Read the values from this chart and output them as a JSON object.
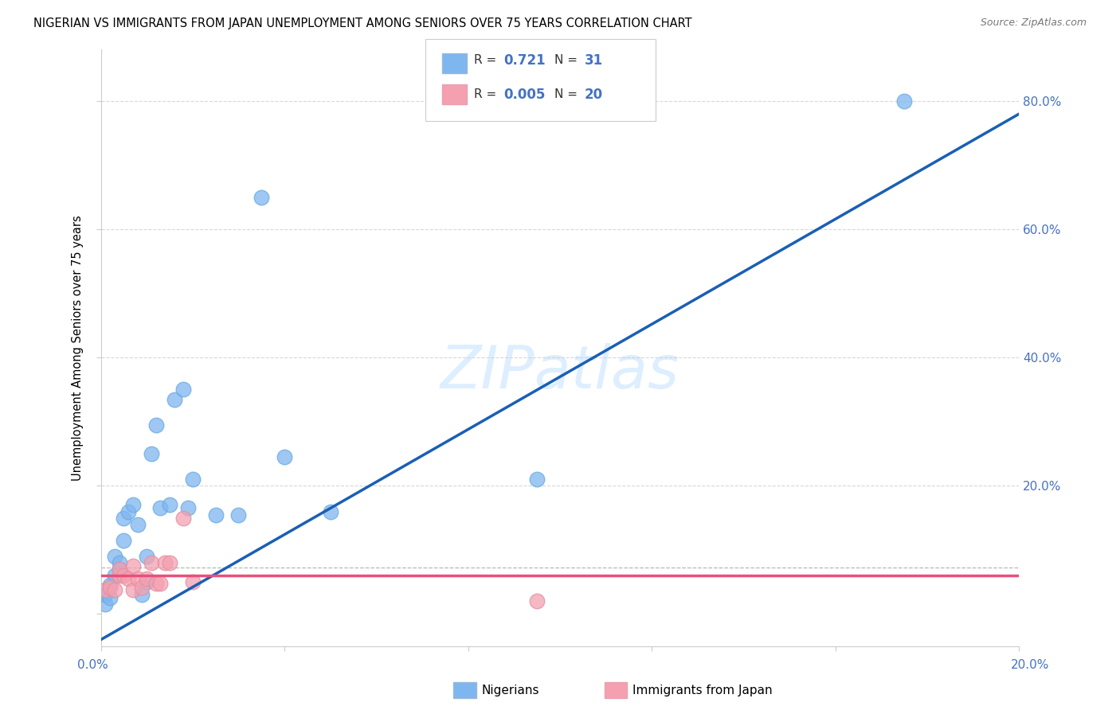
{
  "title": "NIGERIAN VS IMMIGRANTS FROM JAPAN UNEMPLOYMENT AMONG SENIORS OVER 75 YEARS CORRELATION CHART",
  "source": "Source: ZipAtlas.com",
  "ylabel": "Unemployment Among Seniors over 75 years",
  "xlim": [
    0.0,
    0.2
  ],
  "ylim": [
    -0.05,
    0.88
  ],
  "legend_R1": "0.721",
  "legend_N1": "31",
  "legend_R2": "0.005",
  "legend_N2": "20",
  "nigerian_color": "#7EB6F0",
  "japan_color": "#F4A0B0",
  "line_color_nigerian": "#1a5fb4",
  "line_color_japan": "#e8507a",
  "watermark": "ZIPatlas",
  "nigerian_x": [
    0.001,
    0.001,
    0.002,
    0.002,
    0.003,
    0.003,
    0.004,
    0.004,
    0.005,
    0.005,
    0.006,
    0.007,
    0.008,
    0.009,
    0.01,
    0.01,
    0.011,
    0.012,
    0.013,
    0.015,
    0.016,
    0.018,
    0.019,
    0.02,
    0.025,
    0.03,
    0.035,
    0.04,
    0.05,
    0.095,
    0.175
  ],
  "nigerian_y": [
    0.015,
    0.03,
    0.025,
    0.045,
    0.06,
    0.09,
    0.07,
    0.08,
    0.115,
    0.15,
    0.16,
    0.17,
    0.14,
    0.03,
    0.05,
    0.09,
    0.25,
    0.295,
    0.165,
    0.17,
    0.335,
    0.35,
    0.165,
    0.21,
    0.155,
    0.155,
    0.65,
    0.245,
    0.16,
    0.21,
    0.8
  ],
  "japan_x": [
    0.001,
    0.002,
    0.003,
    0.004,
    0.004,
    0.005,
    0.006,
    0.007,
    0.007,
    0.008,
    0.009,
    0.01,
    0.011,
    0.012,
    0.013,
    0.014,
    0.015,
    0.018,
    0.02,
    0.095
  ],
  "japan_y": [
    0.038,
    0.042,
    0.038,
    0.06,
    0.07,
    0.06,
    0.055,
    0.038,
    0.075,
    0.055,
    0.042,
    0.055,
    0.08,
    0.048,
    0.048,
    0.08,
    0.08,
    0.15,
    0.05,
    0.02
  ],
  "nig_line_x0": 0.0,
  "nig_line_y0": -0.04,
  "nig_line_x1": 0.2,
  "nig_line_y1": 0.78,
  "jap_line_y": 0.06
}
